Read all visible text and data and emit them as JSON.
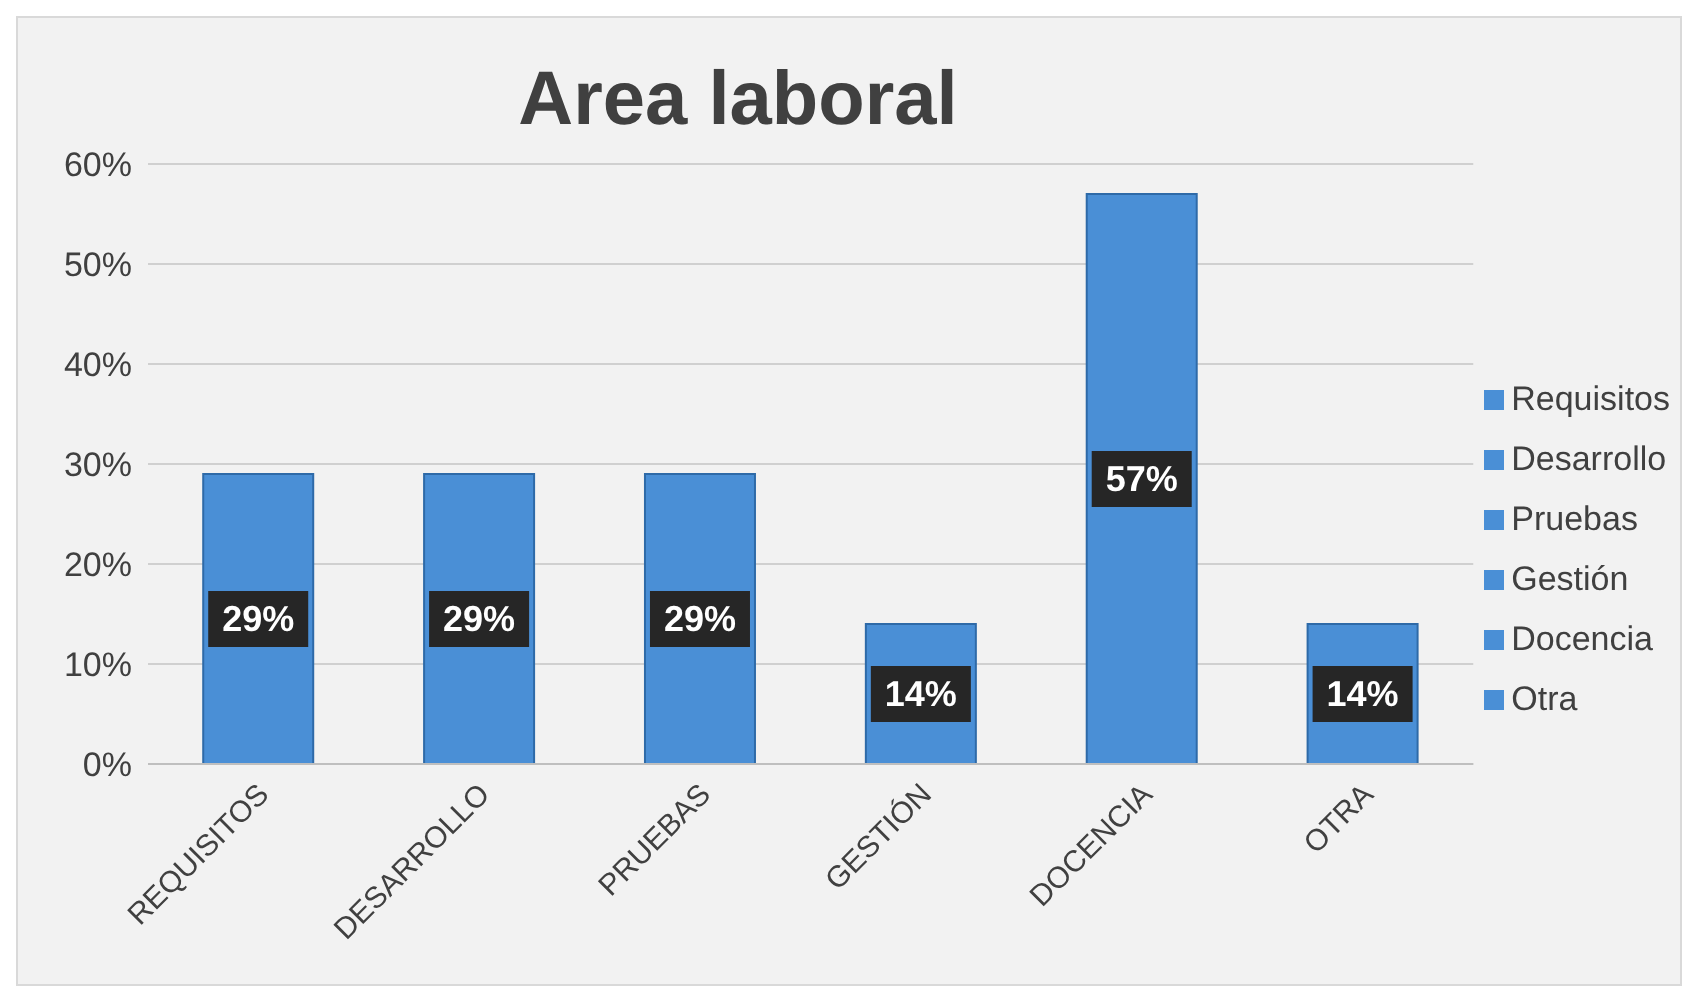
{
  "chart_data": {
    "type": "bar",
    "title": "Area laboral",
    "stacked": true,
    "categories": [
      "REQUISITOS",
      "DESARROLLO",
      "PRUEBAS",
      "GESTIÓN",
      "DOCENCIA",
      "OTRA"
    ],
    "series": [
      {
        "name": "Requisitos",
        "color": "#4a8fd6",
        "values": [
          29,
          null,
          null,
          null,
          null,
          null
        ]
      },
      {
        "name": "Desarrollo",
        "color": "#4a8fd6",
        "values": [
          null,
          29,
          null,
          null,
          null,
          null
        ]
      },
      {
        "name": "Pruebas",
        "color": "#4a8fd6",
        "values": [
          null,
          null,
          29,
          null,
          null,
          null
        ]
      },
      {
        "name": "Gestión",
        "color": "#4a8fd6",
        "values": [
          null,
          null,
          null,
          14,
          null,
          null
        ]
      },
      {
        "name": "Docencia",
        "color": "#4a8fd6",
        "values": [
          null,
          null,
          null,
          null,
          57,
          null
        ]
      },
      {
        "name": "Otra",
        "color": "#4a8fd6",
        "values": [
          null,
          null,
          null,
          null,
          null,
          14
        ]
      }
    ],
    "value_labels": [
      "29%",
      "29%",
      "29%",
      "14%",
      "57%",
      "14%"
    ],
    "ylim": [
      0,
      60
    ],
    "yticks": [
      {
        "value": 0,
        "label": "0%"
      },
      {
        "value": 10,
        "label": "10%"
      },
      {
        "value": 20,
        "label": "20%"
      },
      {
        "value": 30,
        "label": "30%"
      },
      {
        "value": 40,
        "label": "40%"
      },
      {
        "value": 50,
        "label": "50%"
      },
      {
        "value": 60,
        "label": "60%"
      }
    ],
    "grid": "y",
    "legend": "right"
  }
}
